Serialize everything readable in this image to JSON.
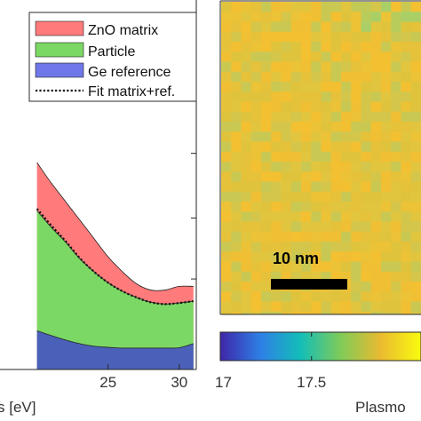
{
  "chart_data": [
    {
      "type": "area",
      "panel": "left",
      "x": [
        20,
        21,
        22,
        23,
        24,
        25,
        26,
        27,
        28,
        29,
        30,
        31
      ],
      "xlim": [
        17.4,
        31.2
      ],
      "ylim": [
        0,
        1
      ],
      "xticks": [
        25,
        30
      ],
      "xtick_labels": [
        "25",
        "30"
      ],
      "xlabel": "s [eV]",
      "series": [
        {
          "name": "ZnO matrix",
          "color": "#ff7b7b",
          "values": [
            0.56,
            0.505,
            0.455,
            0.405,
            0.355,
            0.305,
            0.265,
            0.232,
            0.215,
            0.215,
            0.225,
            0.225
          ]
        },
        {
          "name": "Particle",
          "color": "#7cd864",
          "values": [
            0.43,
            0.385,
            0.345,
            0.3,
            0.265,
            0.235,
            0.212,
            0.195,
            0.182,
            0.177,
            0.18,
            0.185
          ]
        },
        {
          "name": "Ge reference",
          "color": "#4b60b8",
          "values": [
            0.105,
            0.092,
            0.08,
            0.07,
            0.063,
            0.06,
            0.058,
            0.058,
            0.058,
            0.058,
            0.059,
            0.07
          ]
        }
      ],
      "fit": {
        "name": "Fit matrix+ref.",
        "values": [
          0.435,
          0.39,
          0.348,
          0.302,
          0.265,
          0.235,
          0.212,
          0.195,
          0.182,
          0.177,
          0.18,
          0.185
        ]
      }
    },
    {
      "type": "heatmap",
      "panel": "right",
      "description_value": "plasmon energy map",
      "scalebar_label": "10 nm",
      "colorbar": {
        "range": [
          17,
          18.1
        ],
        "ticks": [
          17,
          17.5
        ],
        "tick_labels": [
          "17",
          "17.5"
        ],
        "label": "Plasmo",
        "colors": [
          "#3e26a8",
          "#2e7fe6",
          "#13beb8",
          "#80cb58",
          "#eaba30",
          "#f9fb0e"
        ]
      },
      "map_mean": 17.88,
      "map_colors": [
        "#dfc33c",
        "#e6c13a",
        "#ecc236",
        "#d4c64a",
        "#f0bf34",
        "#c9c852",
        "#e2c53e",
        "#f3c032"
      ]
    }
  ]
}
